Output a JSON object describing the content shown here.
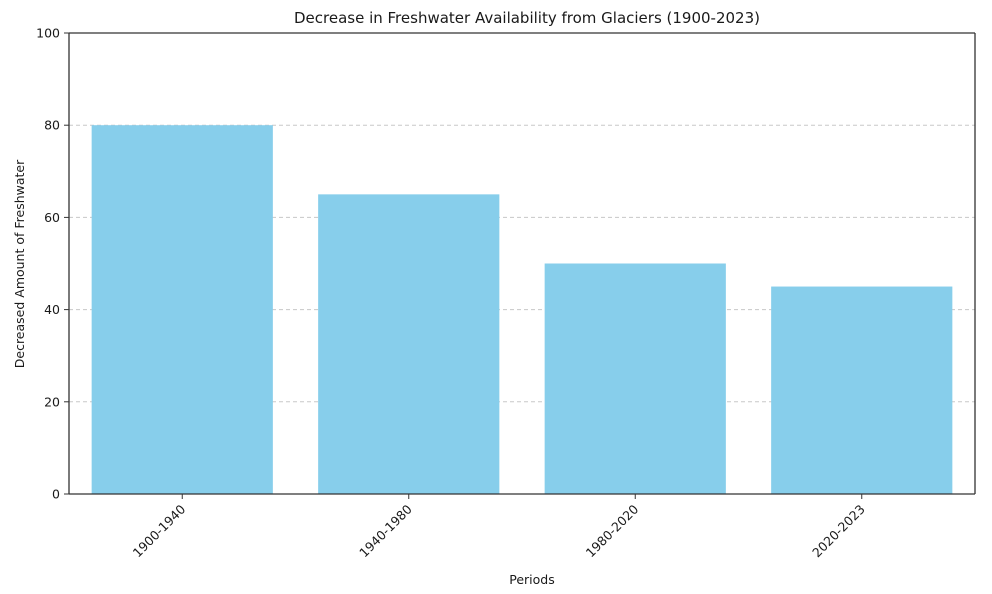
{
  "chart_data": {
    "type": "bar",
    "title": "Decrease in Freshwater Availability from Glaciers (1900-2023)",
    "xlabel": "Periods",
    "ylabel": "Decreased Amount of Freshwater",
    "categories": [
      "1900-1940",
      "1940-1980",
      "1980-2020",
      "2020-2023"
    ],
    "values": [
      80,
      65,
      50,
      45
    ],
    "ylim": [
      0,
      100
    ],
    "yticks": [
      0,
      20,
      40,
      60,
      80,
      100
    ],
    "grid": "y-dashed",
    "bar_color": "#87ceeb"
  }
}
